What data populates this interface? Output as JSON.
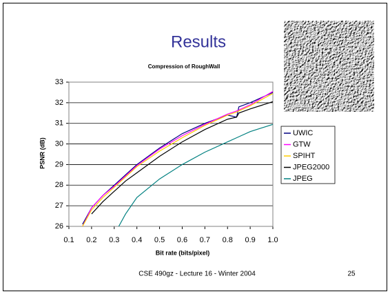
{
  "slide": {
    "title": "Results",
    "footer": "CSE 490gz - Lecture 16 - Winter 2004",
    "page": "25"
  },
  "chart_data": {
    "type": "line",
    "title": "Compression of RoughWall",
    "x_label": "Bit rate (bits/pixel)",
    "y_label": "PSNR (dB)",
    "x": [
      0.16,
      0.2,
      0.25,
      0.3,
      0.32,
      0.35,
      0.4,
      0.5,
      0.6,
      0.7,
      0.8,
      0.84,
      0.85,
      0.9,
      1.0
    ],
    "series": [
      {
        "name": "UWIC",
        "color": "#000080",
        "values": [
          26.1,
          26.9,
          27.5,
          28.0,
          28.2,
          28.5,
          29.0,
          29.8,
          30.5,
          31.0,
          31.4,
          31.3,
          31.8,
          32.0,
          32.5
        ]
      },
      {
        "name": "GTW",
        "color": "#ff00ff",
        "values": [
          26.0,
          26.9,
          27.5,
          27.95,
          28.15,
          28.45,
          28.95,
          29.75,
          30.4,
          30.95,
          31.45,
          31.6,
          31.65,
          31.9,
          32.55
        ]
      },
      {
        "name": "SPIHT",
        "color": "#ffcc00",
        "values": [
          26.0,
          26.8,
          27.4,
          27.9,
          28.1,
          28.4,
          28.9,
          29.65,
          30.3,
          30.9,
          31.4,
          31.55,
          31.6,
          31.85,
          32.45
        ]
      },
      {
        "name": "JPEG2000",
        "color": "#000000",
        "values": [
          null,
          26.6,
          27.2,
          27.7,
          27.9,
          28.2,
          28.6,
          29.4,
          30.1,
          30.7,
          31.2,
          31.3,
          31.5,
          31.7,
          32.05
        ]
      },
      {
        "name": "JPEG",
        "color": "#008080",
        "values": [
          null,
          null,
          null,
          null,
          26.0,
          26.6,
          27.4,
          28.3,
          29.0,
          29.6,
          30.1,
          30.3,
          30.35,
          30.6,
          30.95
        ]
      }
    ],
    "xlim": [
      0.1,
      1.0
    ],
    "ylim": [
      26,
      33
    ],
    "xticks": [
      0.1,
      0.2,
      0.3,
      0.4,
      0.5,
      0.6,
      0.7,
      0.8,
      0.9,
      {
        "value": 1.0,
        "label": "1.0"
      }
    ],
    "yticks": [
      26,
      27,
      28,
      29,
      30,
      31,
      32,
      33
    ],
    "grid": true,
    "legend": "right"
  }
}
